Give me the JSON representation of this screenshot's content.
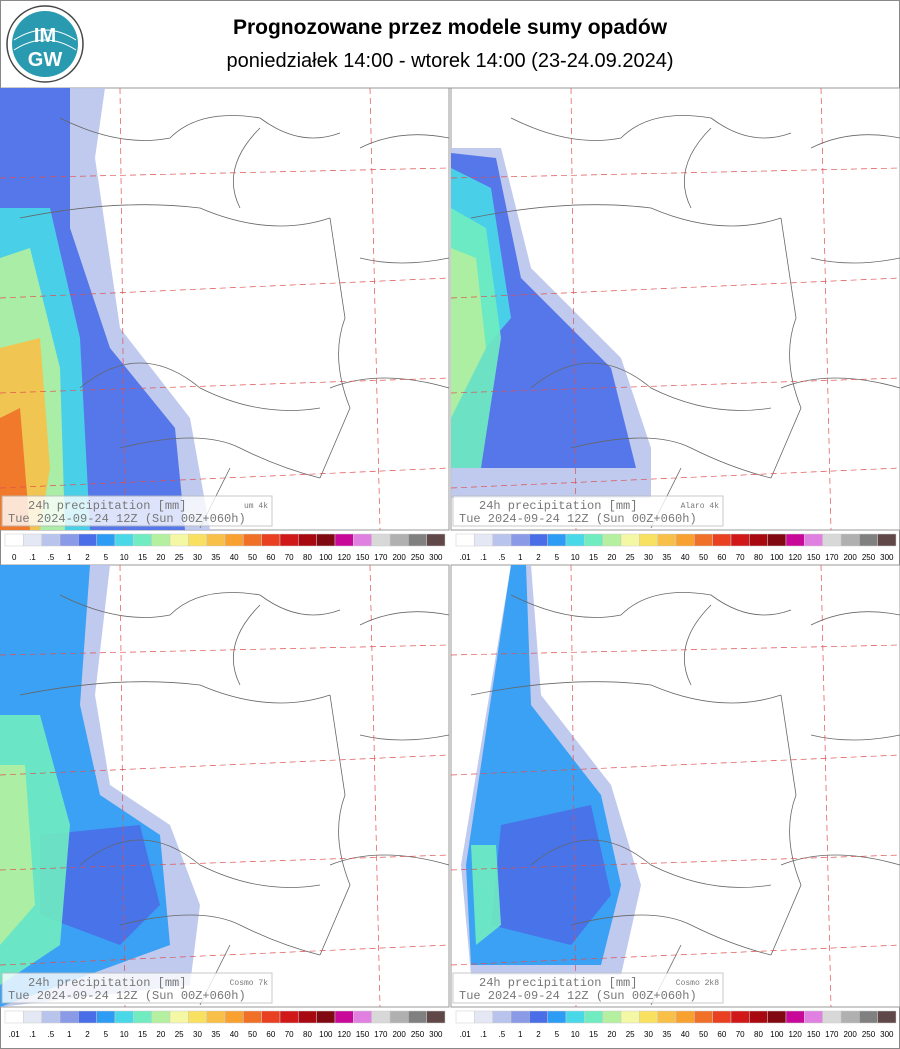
{
  "header": {
    "title": "Prognozowane przez modele sumy opadów",
    "subtitle": "poniedziałek 14:00 - wtorek 14:00 (23-24.09.2024)",
    "logo_top": "IM",
    "logo_bottom": "GW"
  },
  "panels": [
    {
      "label": "24h precipitation [mm]",
      "model": "um 4k",
      "valid": "Tue 2024-09-24 12Z (Sun 00Z+060h)",
      "scale": [
        "0",
        ".1",
        ".5",
        "1",
        "2",
        "5",
        "10",
        "15",
        "20",
        "25",
        "30",
        "35",
        "40",
        "50",
        "60",
        "70",
        "80",
        "100",
        "120",
        "150",
        "170",
        "200",
        "250",
        "300"
      ]
    },
    {
      "label": "24h precipitation [mm]",
      "model": "Alaro 4k",
      "valid": "Tue 2024-09-24 12Z (Sun 00Z+060h)",
      "scale": [
        ".01",
        ".1",
        ".5",
        "1",
        "2",
        "5",
        "10",
        "15",
        "20",
        "25",
        "30",
        "35",
        "40",
        "50",
        "60",
        "70",
        "80",
        "100",
        "120",
        "150",
        "170",
        "200",
        "250",
        "300"
      ]
    },
    {
      "label": "24h precipitation [mm]",
      "model": "Cosmo 7k",
      "valid": "Tue 2024-09-24 12Z (Sun 00Z+060h)",
      "scale": [
        ".01",
        ".1",
        ".5",
        "1",
        "2",
        "5",
        "10",
        "15",
        "20",
        "25",
        "30",
        "35",
        "40",
        "50",
        "60",
        "70",
        "80",
        "100",
        "120",
        "150",
        "170",
        "200",
        "250",
        "300"
      ]
    },
    {
      "label": "24h precipitation [mm]",
      "model": "Cosmo 2k8",
      "valid": "Tue 2024-09-24 12Z (Sun 00Z+060h)",
      "scale": [
        ".01",
        ".1",
        ".5",
        "1",
        "2",
        "5",
        "10",
        "15",
        "20",
        "25",
        "30",
        "35",
        "40",
        "50",
        "60",
        "70",
        "80",
        "100",
        "120",
        "150",
        "170",
        "200",
        "250",
        "300"
      ]
    }
  ],
  "scale_colors": [
    "#ffffff",
    "#e4e8f4",
    "#b8c4ec",
    "#8a9ae6",
    "#4a6ee8",
    "#2c9cf4",
    "#48d8e8",
    "#70ecc0",
    "#b4f0a0",
    "#f4f8a4",
    "#f8e060",
    "#f8c048",
    "#f8a030",
    "#f07028",
    "#e84020",
    "#d01818",
    "#a80810",
    "#800810",
    "#c80898",
    "#e080e0",
    "#d8d8d8",
    "#b0b0b0",
    "#808080",
    "#604848"
  ]
}
